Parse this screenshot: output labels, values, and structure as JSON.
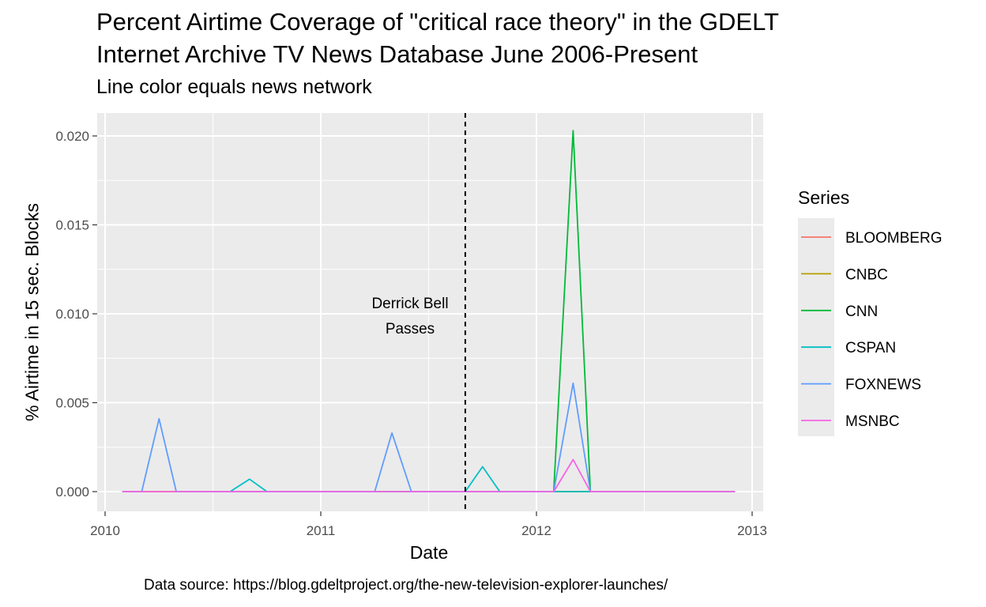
{
  "chart_data": {
    "type": "line",
    "title": "Percent Airtime Coverage of \"critical race theory\" in the GDELT",
    "title_line2": "Internet Archive TV News Database June 2006-Present",
    "subtitle": "Line color equals news network",
    "xlabel": "Date",
    "ylabel": "% Airtime in 15 sec. Blocks",
    "caption": "Data source: https://blog.gdeltproject.org/the-new-television-explorer-launches/",
    "xlim": [
      2010.0,
      2013.0
    ],
    "ylim": [
      0,
      0.021
    ],
    "x_ticks": [
      "2010",
      "2011",
      "2012",
      "2013"
    ],
    "y_ticks": [
      "0.000",
      "0.005",
      "0.010",
      "0.015",
      "0.020"
    ],
    "grid": true,
    "legend_title": "Series",
    "legend_position": "right",
    "vline": {
      "x": 2011.67,
      "style": "dashed"
    },
    "annotation": {
      "line1": "Derrick Bell",
      "line2": "Passes"
    },
    "series": [
      {
        "name": "BLOOMBERG",
        "color": "#F8766D",
        "points": [
          [
            2010.08,
            0
          ],
          [
            2012.92,
            0
          ]
        ]
      },
      {
        "name": "CNBC",
        "color": "#B79F00",
        "points": [
          [
            2010.08,
            0
          ],
          [
            2012.92,
            0
          ]
        ]
      },
      {
        "name": "CNN",
        "color": "#00BA38",
        "points": [
          [
            2012.08,
            0
          ],
          [
            2012.17,
            0.0203
          ],
          [
            2012.25,
            0
          ],
          [
            2012.92,
            0
          ]
        ]
      },
      {
        "name": "CSPAN",
        "color": "#00BFC4",
        "points": [
          [
            2010.58,
            0
          ],
          [
            2010.67,
            0.0007
          ],
          [
            2010.75,
            0
          ],
          [
            2011.67,
            0
          ],
          [
            2011.75,
            0.0014
          ],
          [
            2011.83,
            0
          ],
          [
            2012.08,
            0
          ],
          [
            2012.17,
            0
          ],
          [
            2012.25,
            0
          ]
        ]
      },
      {
        "name": "FOXNEWS",
        "color": "#619CFF",
        "points": [
          [
            2010.08,
            0
          ],
          [
            2010.17,
            0
          ],
          [
            2010.25,
            0.0041
          ],
          [
            2010.33,
            0
          ],
          [
            2011.25,
            0
          ],
          [
            2011.33,
            0.0033
          ],
          [
            2011.42,
            0
          ],
          [
            2012.08,
            0
          ],
          [
            2012.17,
            0.0061
          ],
          [
            2012.25,
            0
          ],
          [
            2012.92,
            0
          ]
        ]
      },
      {
        "name": "MSNBC",
        "color": "#F564E3",
        "points": [
          [
            2010.08,
            0
          ],
          [
            2012.08,
            0
          ],
          [
            2012.17,
            0.0018
          ],
          [
            2012.25,
            0
          ],
          [
            2012.92,
            0
          ]
        ]
      }
    ]
  }
}
